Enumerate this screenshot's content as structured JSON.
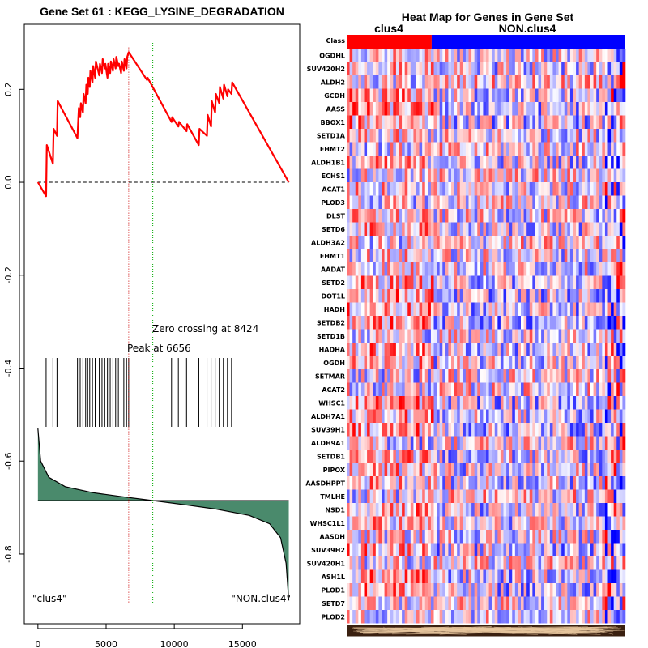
{
  "chart_data": [
    {
      "type": "line",
      "title": "Gene Set  61 : KEGG_LYSINE_DEGRADATION",
      "xlabel": "",
      "ylabel": "",
      "xlim": [
        -1000,
        19200
      ],
      "ylim": [
        -0.95,
        0.34
      ],
      "x_ticks": [
        0,
        5000,
        10000,
        15000
      ],
      "x_tick_labels": [
        "0",
        "5000",
        "10000",
        "15000"
      ],
      "y_ticks": [
        0.2,
        0.0,
        -0.2,
        -0.4,
        -0.6,
        -0.8
      ],
      "y_tick_labels": [
        "0.2",
        "0.0",
        "-0.2",
        "-0.4",
        "-0.6",
        "-0.8"
      ],
      "running_es": {
        "name": "Running enrichment score",
        "color": "#ff0000",
        "x": [
          0,
          600,
          650,
          1100,
          1150,
          1400,
          1450,
          2900,
          2950,
          3000,
          3100,
          3150,
          3300,
          3350,
          3500,
          3550,
          3650,
          3700,
          3800,
          3850,
          4000,
          4050,
          4200,
          4250,
          4500,
          4550,
          4700,
          4750,
          4900,
          4950,
          5100,
          5150,
          5300,
          5350,
          5500,
          5550,
          5700,
          5750,
          5900,
          5950,
          6100,
          6150,
          6300,
          6350,
          6500,
          6550,
          6656,
          8000,
          8050,
          9800,
          9850,
          10300,
          10350,
          10900,
          10950,
          11800,
          11850,
          12400,
          12450,
          12700,
          12750,
          13000,
          13050,
          13300,
          13350,
          13600,
          13650,
          13900,
          13950,
          14200,
          14250,
          18400
        ],
        "y": [
          0.0,
          -0.03,
          0.08,
          0.04,
          0.115,
          0.1,
          0.175,
          0.095,
          0.13,
          0.16,
          0.14,
          0.17,
          0.15,
          0.19,
          0.17,
          0.21,
          0.19,
          0.225,
          0.205,
          0.24,
          0.215,
          0.25,
          0.225,
          0.26,
          0.23,
          0.255,
          0.235,
          0.265,
          0.245,
          0.255,
          0.225,
          0.255,
          0.235,
          0.26,
          0.24,
          0.265,
          0.245,
          0.27,
          0.25,
          0.255,
          0.235,
          0.26,
          0.24,
          0.265,
          0.245,
          0.27,
          0.28,
          0.22,
          0.225,
          0.13,
          0.14,
          0.12,
          0.13,
          0.11,
          0.125,
          0.08,
          0.115,
          0.1,
          0.145,
          0.12,
          0.175,
          0.15,
          0.19,
          0.17,
          0.205,
          0.18,
          0.21,
          0.185,
          0.2,
          0.19,
          0.215,
          0.0
        ]
      },
      "baseline": 0.0,
      "peak": {
        "x": 6656,
        "label": "Peak at 6656",
        "color": "#cc0000"
      },
      "zero_crossing": {
        "x": 8424,
        "label": "Zero crossing at 8424",
        "color": "#00aa00"
      },
      "hit_positions": [
        600,
        1100,
        1400,
        2900,
        3100,
        3300,
        3500,
        3650,
        3800,
        4000,
        4200,
        4500,
        4700,
        4900,
        5100,
        5300,
        5500,
        5700,
        5900,
        6100,
        6300,
        6500,
        6656,
        8000,
        9800,
        10300,
        10900,
        11800,
        12400,
        12700,
        13000,
        13300,
        13600,
        13900,
        14200
      ],
      "ranked_metric": {
        "name": "Ranked list metric",
        "fill": "#4a8a6c",
        "baseline": -0.685,
        "x": [
          0,
          200,
          800,
          2000,
          4000,
          6000,
          8424,
          11000,
          13000,
          15500,
          17000,
          17800,
          18200,
          18400
        ],
        "y": [
          -0.53,
          -0.6,
          -0.635,
          -0.655,
          -0.668,
          -0.676,
          -0.685,
          -0.695,
          -0.703,
          -0.717,
          -0.735,
          -0.765,
          -0.82,
          -0.9
        ]
      },
      "class_labels": {
        "left": "\"clus4\"",
        "right": "\"NON.clus4\""
      }
    },
    {
      "type": "heatmap",
      "title": "Heat Map for Genes in Gene Set",
      "class_row_label": "Class",
      "classes": [
        {
          "name": "clus4",
          "color": "#ff0000",
          "fraction": 0.305
        },
        {
          "name": "NON.clus4",
          "color": "#0000ff",
          "fraction": 0.695
        }
      ],
      "genes": [
        "OGDHL",
        "SUV420H2",
        "ALDH2",
        "GCDH",
        "AASS",
        "BBOX1",
        "SETD1A",
        "EHMT2",
        "ALDH1B1",
        "ECHS1",
        "ACAT1",
        "PLOD3",
        "DLST",
        "SETD6",
        "ALDH3A2",
        "EHMT1",
        "AADAT",
        "SETD2",
        "DOT1L",
        "HADH",
        "SETDB2",
        "SETD1B",
        "HADHA",
        "OGDH",
        "SETMAR",
        "ACAT2",
        "WHSC1",
        "ALDH7A1",
        "SUV39H1",
        "ALDH9A1",
        "SETDB1",
        "PIPOX",
        "AASDHPPT",
        "TMLHE",
        "NSD1",
        "WHSC1L1",
        "AASDH",
        "SUV39H2",
        "SUV420H1",
        "ASH1L",
        "PLOD1",
        "SETD7",
        "PLOD2"
      ],
      "color_scale": {
        "low": "#0000ff",
        "mid": "#ffffff",
        "high": "#ff0000"
      }
    }
  ]
}
